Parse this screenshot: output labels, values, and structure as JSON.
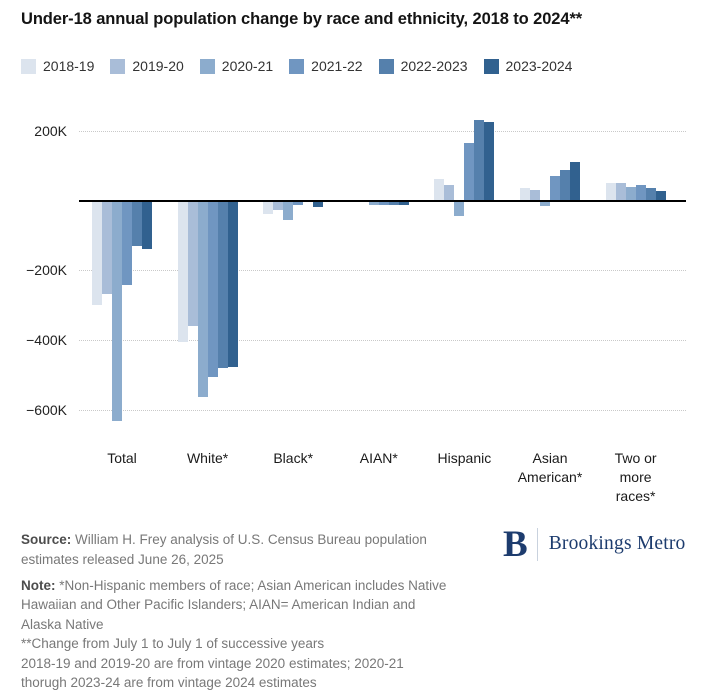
{
  "page": {
    "title": "Under-18 annual population change by race and ethnicity, 2018 to 2024**"
  },
  "legend": {
    "position": "top",
    "items": [
      {
        "label": "2018-19",
        "color": "#dce4ee"
      },
      {
        "label": "2019-20",
        "color": "#a9bdd8"
      },
      {
        "label": "2020-21",
        "color": "#8caccd"
      },
      {
        "label": "2021-22",
        "color": "#7096c1"
      },
      {
        "label": "2022-2023",
        "color": "#5580ac"
      },
      {
        "label": "2023-2024",
        "color": "#31618f"
      }
    ]
  },
  "chart_data": {
    "type": "bar",
    "title": "Under-18 annual population change by race and ethnicity, 2018 to 2024**",
    "xlabel": "",
    "ylabel": "",
    "value_unit": "persons (values in thousands)",
    "grid": "dotted horizontal gridlines, solid black zero line",
    "legend_position": "top",
    "categories": [
      "Total",
      "White*",
      "Black*",
      "AIAN*",
      "Hispanic",
      "Asian American*",
      "Two or more races*"
    ],
    "category_labels": [
      "Total",
      "White*",
      "Black*",
      "AIAN*",
      "Hispanic",
      "Asian\nAmerican*",
      "Two or\nmore\nraces*"
    ],
    "series": [
      {
        "name": "2018-19",
        "color": "#dce4ee",
        "values_k": [
          -300,
          -405,
          -40,
          -2,
          62,
          35,
          50
        ]
      },
      {
        "name": "2019-20",
        "color": "#a9bdd8",
        "values_k": [
          -268,
          -360,
          -28,
          -2,
          44,
          29,
          51
        ]
      },
      {
        "name": "2020-21",
        "color": "#8caccd",
        "values_k": [
          -632,
          -562,
          -55,
          -12,
          -44,
          -15,
          39
        ]
      },
      {
        "name": "2021-22",
        "color": "#7096c1",
        "values_k": [
          -243,
          -507,
          -13,
          -13,
          166,
          69,
          43
        ]
      },
      {
        "name": "2022-2023",
        "color": "#5580ac",
        "values_k": [
          -130,
          -480,
          -5,
          -13,
          231,
          88,
          37
        ]
      },
      {
        "name": "2023-2024",
        "color": "#31618f",
        "values_k": [
          -138,
          -477,
          -19,
          -14,
          224,
          111,
          28
        ]
      }
    ],
    "y_axis": {
      "range_k": [
        -650,
        250
      ],
      "zero_line": true,
      "ticks": [
        {
          "value_k": 200,
          "label": "200K"
        },
        {
          "value_k": -200,
          "label": "−200K"
        },
        {
          "value_k": -400,
          "label": "−400K"
        },
        {
          "value_k": -600,
          "label": "−600K"
        }
      ]
    }
  },
  "footer": {
    "source": {
      "label": "Source:",
      "lines": [
        "William H. Frey analysis of U.S. Census Bureau population",
        "estimates released June 26, 2025"
      ]
    },
    "note": {
      "label": "Note:",
      "lines": [
        "*Non-Hispanic members of race; Asian American includes Native",
        "Hawaiian and Other Pacific Islanders; AIAN= American Indian and",
        "Alaska Native",
        "**Change from July 1 to July 1 of successive years",
        "2018-19 and 2019-20 are from vintage 2020 estimates; 2020-21",
        "thorugh 2023-24 are from vintage 2024 estimates"
      ]
    },
    "logo": {
      "monogram": "B",
      "name": "Brookings Metro"
    }
  }
}
